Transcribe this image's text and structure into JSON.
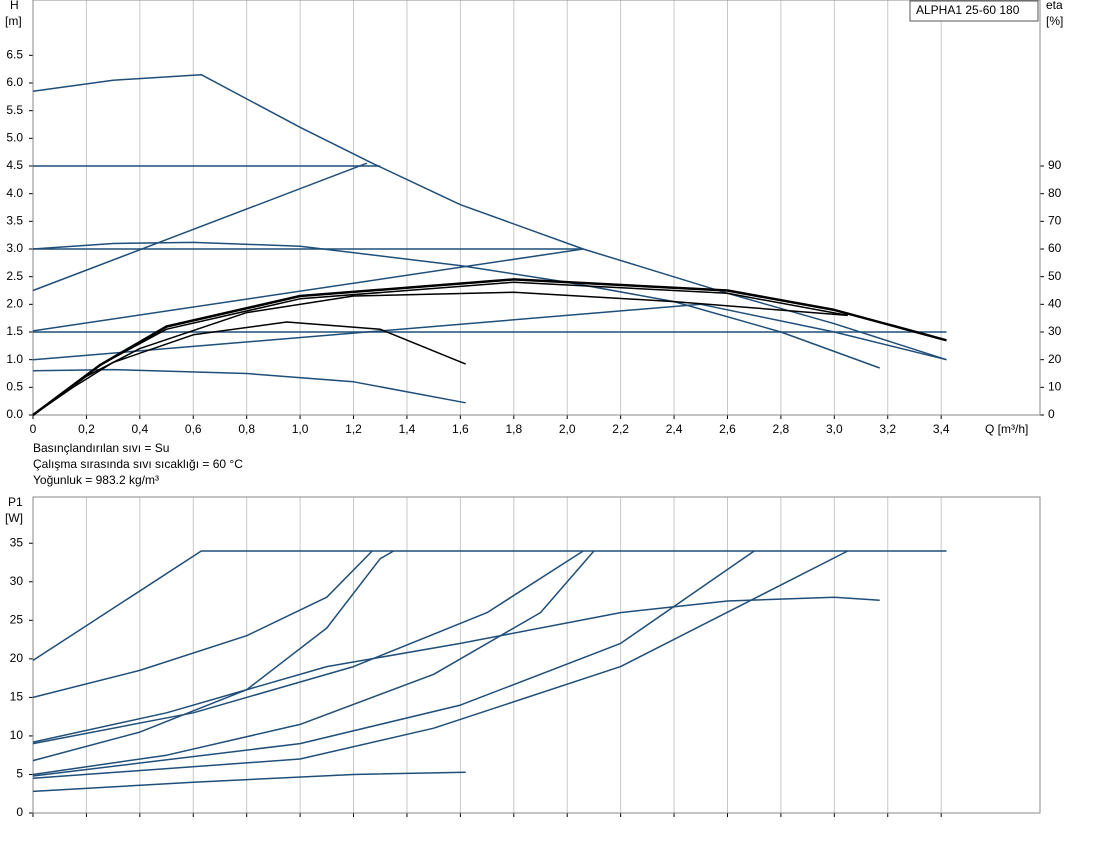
{
  "chart_data": [
    {
      "type": "line",
      "ylabel": "H",
      "yunit": "[m]",
      "y2label": "eta",
      "y2unit": "[%]",
      "xlabel": "Q [m³/h]",
      "legend": "ALPHA1 25-60 180",
      "notes": [
        "Basınçlandırılan sıvı = Su",
        "Çalışma sırasında sıvı sıcaklığı = 60 °C",
        "Yoğunluk = 983.2 kg/m³"
      ],
      "xlim": [
        0,
        3.77
      ],
      "ylim": [
        0,
        7.5
      ],
      "y2lim": [
        0,
        150
      ],
      "grid": true,
      "xticks": [
        0,
        {
          "value": 0.2,
          "label": "0,2"
        },
        {
          "value": 0.4,
          "label": "0,4"
        },
        {
          "value": 0.6,
          "label": "0,6"
        },
        {
          "value": 0.8,
          "label": "0,8"
        },
        {
          "value": 1.0,
          "label": "1,0"
        },
        {
          "value": 1.2,
          "label": "1,2"
        },
        {
          "value": 1.4,
          "label": "1,4"
        },
        {
          "value": 1.6,
          "label": "1,6"
        },
        {
          "value": 1.8,
          "label": "1,8"
        },
        {
          "value": 2.0,
          "label": "2,0"
        },
        {
          "value": 2.2,
          "label": "2,2"
        },
        {
          "value": 2.4,
          "label": "2,4"
        },
        {
          "value": 2.6,
          "label": "2,6"
        },
        {
          "value": 2.8,
          "label": "2,8"
        },
        {
          "value": 3.0,
          "label": "3,0"
        },
        {
          "value": 3.2,
          "label": "3,2"
        },
        {
          "value": 3.4,
          "label": "3,4"
        }
      ],
      "yticks": [
        {
          "value": 0,
          "label": "0.0"
        },
        0.5,
        {
          "value": 1,
          "label": "1.0"
        },
        1.5,
        {
          "value": 2,
          "label": "2.0"
        },
        2.5,
        {
          "value": 3,
          "label": "3.0"
        },
        3.5,
        {
          "value": 4,
          "label": "4.0"
        },
        4.5,
        {
          "value": 5,
          "label": "5.0"
        },
        5.5,
        {
          "value": 6,
          "label": "6.0"
        },
        6.5
      ],
      "y2ticks": [
        0,
        10,
        20,
        30,
        40,
        50,
        60,
        70,
        80,
        90
      ],
      "series": [
        {
          "color": "#1f4e79",
          "width": 1.5,
          "x": [
            0,
            0.3,
            0.63,
            1.0,
            1.27,
            1.6,
            2.06,
            2.6,
            3.0,
            3.42
          ],
          "values": [
            5.85,
            6.05,
            6.15,
            5.2,
            4.55,
            3.8,
            3.0,
            2.2,
            1.65,
            1.0
          ]
        },
        {
          "color": "#1f4e79",
          "width": 1.5,
          "x": [
            0,
            1.3
          ],
          "values": [
            4.5,
            4.5
          ]
        },
        {
          "color": "#1f4e79",
          "width": 1.5,
          "x": [
            0,
            1.25
          ],
          "values": [
            2.25,
            4.55
          ]
        },
        {
          "color": "#1f4e79",
          "width": 1.5,
          "x": [
            0,
            0.3,
            0.6,
            1.0,
            1.6,
            2.0,
            2.4,
            2.8,
            3.17
          ],
          "values": [
            3.0,
            3.1,
            3.12,
            3.05,
            2.7,
            2.4,
            2.05,
            1.5,
            0.85
          ]
        },
        {
          "color": "#1f4e79",
          "width": 1.5,
          "x": [
            0,
            2.06
          ],
          "values": [
            3.0,
            3.0
          ]
        },
        {
          "color": "#1f4e79",
          "width": 1.5,
          "x": [
            0,
            2.06
          ],
          "values": [
            1.52,
            3.0
          ]
        },
        {
          "color": "#1f4e79",
          "width": 1.5,
          "x": [
            0,
            3.42
          ],
          "values": [
            1.5,
            1.5
          ]
        },
        {
          "color": "#1f4e79",
          "width": 1.5,
          "x": [
            0,
            2.5,
            3.0,
            3.42
          ],
          "values": [
            1.0,
            2.0,
            1.5,
            1.0
          ]
        },
        {
          "color": "#1f4e79",
          "width": 1.5,
          "x": [
            0,
            0.3,
            0.8,
            1.2,
            1.62
          ],
          "values": [
            0.8,
            0.82,
            0.75,
            0.6,
            0.22
          ]
        },
        {
          "color": "#000000",
          "width": 1.5,
          "axis": "y2",
          "x": [
            0,
            0.15,
            0.3,
            0.6,
            0.95,
            1.3,
            1.62
          ],
          "values": [
            0,
            10,
            19,
            29,
            33.6,
            31,
            18.4
          ]
        },
        {
          "color": "#000000",
          "width": 1.5,
          "axis": "y2",
          "x": [
            0,
            0.2,
            0.4,
            0.8,
            1.2,
            1.8,
            2.4,
            3.05
          ],
          "values": [
            0,
            14,
            24,
            37,
            43,
            44.4,
            41,
            36
          ]
        },
        {
          "color": "#000000",
          "width": 1.5,
          "axis": "y2",
          "x": [
            0,
            0.25,
            0.5,
            1.0,
            1.8,
            2.6,
            3.05
          ],
          "values": [
            0,
            18,
            31,
            42,
            48,
            44,
            36
          ]
        },
        {
          "color": "#000000",
          "width": 2.5,
          "axis": "y2",
          "x": [
            0,
            0.25,
            0.5,
            1.0,
            1.8,
            2.6,
            3.0,
            3.42
          ],
          "values": [
            0,
            18,
            32,
            43,
            49,
            45,
            38,
            27
          ]
        }
      ]
    },
    {
      "type": "line",
      "ylabel": "P1",
      "yunit": "[W]",
      "xlim": [
        0,
        3.77
      ],
      "ylim": [
        0,
        41
      ],
      "grid": true,
      "xticks": [
        0,
        0.2,
        0.4,
        0.6,
        0.8,
        1.0,
        1.2,
        1.4,
        1.6,
        1.8,
        2.0,
        2.2,
        2.4,
        2.6,
        2.8,
        3.0,
        3.2,
        3.4
      ],
      "yticks": [
        0,
        5,
        10,
        15,
        20,
        25,
        30,
        35
      ],
      "series": [
        {
          "color": "#1f4e79",
          "width": 1.5,
          "x": [
            0,
            0.63,
            3.42
          ],
          "values": [
            19.8,
            34,
            34
          ]
        },
        {
          "color": "#1f4e79",
          "width": 1.5,
          "x": [
            0,
            0.4,
            0.8,
            1.1,
            1.27
          ],
          "values": [
            15,
            18.5,
            23,
            28,
            34
          ]
        },
        {
          "color": "#1f4e79",
          "width": 1.5,
          "x": [
            0,
            0.4,
            0.8,
            1.1,
            1.3,
            1.35
          ],
          "values": [
            6.8,
            10.5,
            16,
            24,
            33,
            34
          ]
        },
        {
          "color": "#1f4e79",
          "width": 1.5,
          "x": [
            0,
            0.6,
            1.2,
            1.7,
            2.06
          ],
          "values": [
            9,
            13,
            19,
            26,
            34
          ]
        },
        {
          "color": "#1f4e79",
          "width": 1.5,
          "x": [
            0,
            0.5,
            1.1,
            1.6,
            2.2,
            2.6,
            3.0,
            3.17
          ],
          "values": [
            9.2,
            13,
            19,
            22,
            26,
            27.5,
            28,
            27.6
          ]
        },
        {
          "color": "#1f4e79",
          "width": 1.5,
          "x": [
            0,
            0.5,
            1.0,
            1.5,
            1.9,
            2.1
          ],
          "values": [
            5,
            7.5,
            11.5,
            18,
            26,
            34
          ]
        },
        {
          "color": "#1f4e79",
          "width": 1.5,
          "x": [
            0,
            1.0,
            1.6,
            2.2,
            2.7
          ],
          "values": [
            4.8,
            9,
            14,
            22,
            34
          ]
        },
        {
          "color": "#1f4e79",
          "width": 1.5,
          "x": [
            0,
            1.0,
            1.5,
            2.2,
            3.05
          ],
          "values": [
            4.5,
            7,
            11,
            19,
            34
          ]
        },
        {
          "color": "#1f4e79",
          "width": 1.5,
          "x": [
            0,
            0.6,
            1.2,
            1.62
          ],
          "values": [
            2.8,
            4,
            5,
            5.3
          ]
        }
      ]
    }
  ]
}
